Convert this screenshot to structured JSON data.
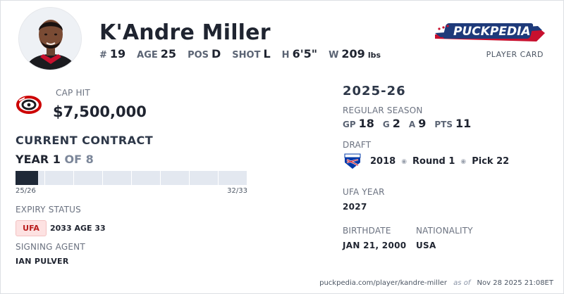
{
  "player": {
    "name": "K'Andre Miller",
    "stats": [
      {
        "label": "#",
        "value": "19"
      },
      {
        "label": "AGE",
        "value": "25"
      },
      {
        "label": "POS",
        "value": "D"
      },
      {
        "label": "SHOT",
        "value": "L"
      },
      {
        "label": "H",
        "value": "6'5\""
      },
      {
        "label": "W",
        "value": "209",
        "unit": "lbs"
      }
    ]
  },
  "brand": {
    "logo_text": "PUCKPEDIA",
    "card_label": "PLAYER CARD"
  },
  "contract": {
    "cap_hit_label": "CAP HIT",
    "cap_hit_value": "$7,500,000",
    "section_title": "CURRENT CONTRACT",
    "year_label": "YEAR 1",
    "year_of": "OF 8",
    "progress_fraction": 0.125,
    "segments": 8,
    "start_season": "25/26",
    "end_season": "32/33",
    "expiry_label": "EXPIRY STATUS",
    "expiry_badge": "UFA",
    "expiry_detail": "2033 AGE 33",
    "agent_label": "SIGNING AGENT",
    "agent_value": "IAN PULVER"
  },
  "season": {
    "title": "2025-26",
    "rs_label": "REGULAR SEASON",
    "rs_stats": [
      {
        "label": "GP",
        "value": "18"
      },
      {
        "label": "G",
        "value": "2"
      },
      {
        "label": "A",
        "value": "9"
      },
      {
        "label": "PTS",
        "value": "11"
      }
    ]
  },
  "draft": {
    "label": "DRAFT",
    "year": "2018",
    "round": "Round 1",
    "pick": "Pick 22"
  },
  "ufa": {
    "label": "UFA YEAR",
    "value": "2027"
  },
  "bio": {
    "birthdate_label": "BIRTHDATE",
    "birthdate_value": "JAN 21, 2000",
    "nationality_label": "NATIONALITY",
    "nationality_value": "USA"
  },
  "footer": {
    "url": "puckpedia.com/player/kandre-miller",
    "as_of_label": "as of",
    "timestamp": "Nov 28 2025 21:08ET"
  },
  "colors": {
    "progress_fill": "#1f2937",
    "progress_track": "#e3e8f0",
    "ufa_badge_bg": "#fde2e2",
    "ufa_badge_text": "#b91c1c",
    "canes_red": "#cc0000",
    "rangers_blue": "#0038a8"
  }
}
